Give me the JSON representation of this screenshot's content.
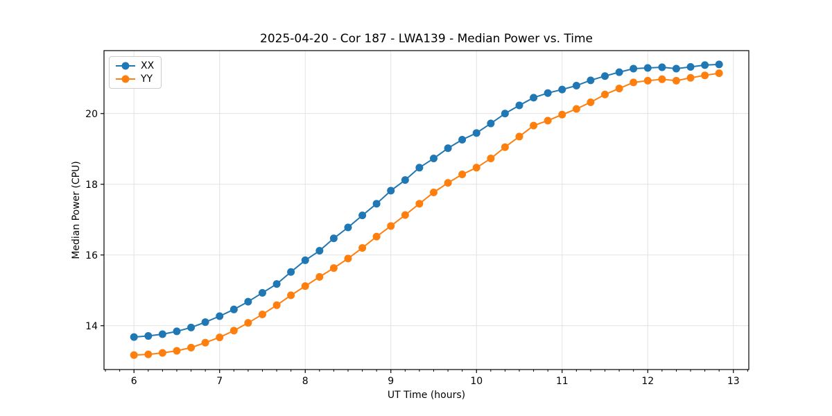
{
  "chart_data": {
    "type": "line",
    "title": "2025-04-20 - Cor 187 - LWA139 - Median Power vs. Time",
    "xlabel": "UT Time (hours)",
    "ylabel": "Median Power (CPU)",
    "xlim": [
      5.65,
      13.18
    ],
    "ylim": [
      12.76,
      21.78
    ],
    "x_ticks": [
      6,
      7,
      8,
      9,
      10,
      11,
      12,
      13
    ],
    "y_ticks": [
      14,
      16,
      18,
      20
    ],
    "x_minor_tick_step": 0.1667,
    "grid": true,
    "legend_position": "upper-left",
    "x": [
      6.0,
      6.167,
      6.333,
      6.5,
      6.667,
      6.833,
      7.0,
      7.167,
      7.333,
      7.5,
      7.667,
      7.833,
      8.0,
      8.167,
      8.333,
      8.5,
      8.667,
      8.833,
      9.0,
      9.167,
      9.333,
      9.5,
      9.667,
      9.833,
      10.0,
      10.167,
      10.333,
      10.5,
      10.667,
      10.833,
      11.0,
      11.167,
      11.333,
      11.5,
      11.667,
      11.833,
      12.0,
      12.167,
      12.333,
      12.5,
      12.667,
      12.833
    ],
    "series": [
      {
        "name": "XX",
        "color": "#1f77b4",
        "values": [
          13.68,
          13.71,
          13.76,
          13.84,
          13.95,
          14.1,
          14.27,
          14.46,
          14.68,
          14.93,
          15.18,
          15.52,
          15.85,
          16.12,
          16.47,
          16.78,
          17.12,
          17.45,
          17.82,
          18.12,
          18.47,
          18.73,
          19.02,
          19.26,
          19.45,
          19.72,
          20.0,
          20.23,
          20.45,
          20.58,
          20.68,
          20.79,
          20.94,
          21.06,
          21.17,
          21.27,
          21.29,
          21.31,
          21.27,
          21.32,
          21.37,
          21.39
        ]
      },
      {
        "name": "YY",
        "color": "#ff7f0e",
        "values": [
          13.17,
          13.19,
          13.23,
          13.29,
          13.38,
          13.52,
          13.67,
          13.86,
          14.08,
          14.32,
          14.58,
          14.86,
          15.12,
          15.38,
          15.63,
          15.9,
          16.2,
          16.52,
          16.82,
          17.13,
          17.45,
          17.77,
          18.04,
          18.28,
          18.47,
          18.73,
          19.05,
          19.35,
          19.66,
          19.8,
          19.97,
          20.13,
          20.32,
          20.54,
          20.71,
          20.88,
          20.93,
          20.97,
          20.93,
          21.01,
          21.08,
          21.14
        ]
      }
    ]
  },
  "colors": {
    "grid": "#e2e2e2",
    "spine": "#000000",
    "background": "#ffffff",
    "text": "#000000"
  }
}
